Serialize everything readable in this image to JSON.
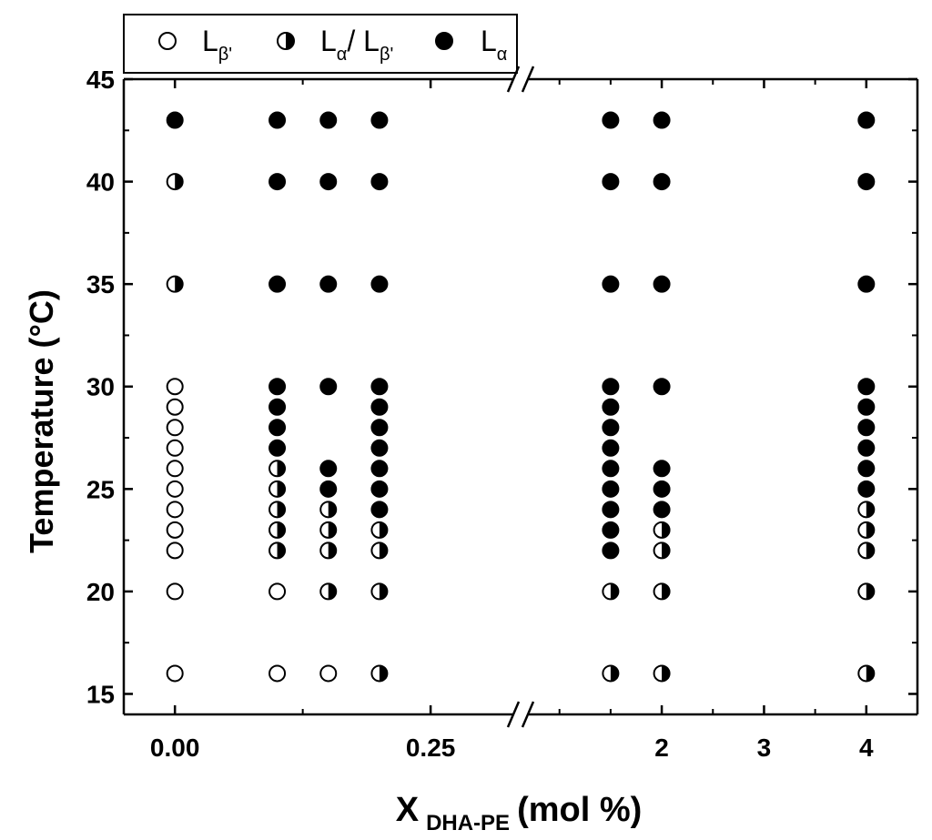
{
  "chart_data": {
    "type": "scatter",
    "title": "",
    "ylabel": "Temperature (°C)",
    "xlabel": {
      "main": "X",
      "subscript": "DHA-PE",
      "suffix": "(mol %)"
    },
    "ylim": [
      14,
      45
    ],
    "yticks": [
      15,
      20,
      25,
      30,
      35,
      40,
      45
    ],
    "x_axis_broken": true,
    "x_segments": [
      {
        "range": [
          -0.05,
          0.33
        ],
        "ticks": [
          0.0,
          0.25
        ],
        "tick_labels": [
          "0.00",
          "0.25"
        ]
      },
      {
        "range": [
          0.7,
          4.5
        ],
        "ticks": [
          2,
          3,
          4
        ],
        "tick_labels": [
          "2",
          "3",
          "4"
        ]
      }
    ],
    "legend": {
      "placement": "top-left, above plot",
      "entries": [
        {
          "phase": "L_beta_prime",
          "marker": "open-circle",
          "label_main": "L",
          "label_sub": "β'"
        },
        {
          "phase": "L_alpha_L_beta_prime",
          "marker": "half-filled-circle",
          "label_main": "L",
          "label_sub": "α",
          "label_sep": "/ ",
          "label_main2": "L",
          "label_sub2": "β'"
        },
        {
          "phase": "L_alpha",
          "marker": "filled-circle",
          "label_main": "L",
          "label_sub": "α"
        }
      ]
    },
    "series": [
      {
        "x": 0.0,
        "points": [
          {
            "T": 16,
            "phase": "open"
          },
          {
            "T": 20,
            "phase": "open"
          },
          {
            "T": 22,
            "phase": "open"
          },
          {
            "T": 23,
            "phase": "open"
          },
          {
            "T": 24,
            "phase": "open"
          },
          {
            "T": 25,
            "phase": "open"
          },
          {
            "T": 26,
            "phase": "open"
          },
          {
            "T": 27,
            "phase": "open"
          },
          {
            "T": 28,
            "phase": "open"
          },
          {
            "T": 29,
            "phase": "open"
          },
          {
            "T": 30,
            "phase": "open"
          },
          {
            "T": 35,
            "phase": "half"
          },
          {
            "T": 40,
            "phase": "half"
          },
          {
            "T": 43,
            "phase": "filled"
          }
        ]
      },
      {
        "x": 0.1,
        "points": [
          {
            "T": 16,
            "phase": "open"
          },
          {
            "T": 20,
            "phase": "open"
          },
          {
            "T": 22,
            "phase": "half"
          },
          {
            "T": 23,
            "phase": "half"
          },
          {
            "T": 24,
            "phase": "half"
          },
          {
            "T": 25,
            "phase": "half"
          },
          {
            "T": 26,
            "phase": "half"
          },
          {
            "T": 27,
            "phase": "filled"
          },
          {
            "T": 28,
            "phase": "filled"
          },
          {
            "T": 29,
            "phase": "filled"
          },
          {
            "T": 30,
            "phase": "filled"
          },
          {
            "T": 35,
            "phase": "filled"
          },
          {
            "T": 40,
            "phase": "filled"
          },
          {
            "T": 43,
            "phase": "filled"
          }
        ]
      },
      {
        "x": 0.15,
        "points": [
          {
            "T": 16,
            "phase": "open"
          },
          {
            "T": 20,
            "phase": "half"
          },
          {
            "T": 22,
            "phase": "half"
          },
          {
            "T": 23,
            "phase": "half"
          },
          {
            "T": 24,
            "phase": "half"
          },
          {
            "T": 25,
            "phase": "filled"
          },
          {
            "T": 26,
            "phase": "filled"
          },
          {
            "T": 30,
            "phase": "filled"
          },
          {
            "T": 35,
            "phase": "filled"
          },
          {
            "T": 40,
            "phase": "filled"
          },
          {
            "T": 43,
            "phase": "filled"
          }
        ]
      },
      {
        "x": 0.2,
        "points": [
          {
            "T": 16,
            "phase": "half"
          },
          {
            "T": 20,
            "phase": "half"
          },
          {
            "T": 22,
            "phase": "half"
          },
          {
            "T": 23,
            "phase": "half"
          },
          {
            "T": 24,
            "phase": "filled"
          },
          {
            "T": 25,
            "phase": "filled"
          },
          {
            "T": 26,
            "phase": "filled"
          },
          {
            "T": 27,
            "phase": "filled"
          },
          {
            "T": 28,
            "phase": "filled"
          },
          {
            "T": 29,
            "phase": "filled"
          },
          {
            "T": 30,
            "phase": "filled"
          },
          {
            "T": 35,
            "phase": "filled"
          },
          {
            "T": 40,
            "phase": "filled"
          },
          {
            "T": 43,
            "phase": "filled"
          }
        ]
      },
      {
        "x": 1.5,
        "points": [
          {
            "T": 16,
            "phase": "half"
          },
          {
            "T": 20,
            "phase": "half"
          },
          {
            "T": 22,
            "phase": "filled"
          },
          {
            "T": 23,
            "phase": "filled"
          },
          {
            "T": 24,
            "phase": "filled"
          },
          {
            "T": 25,
            "phase": "filled"
          },
          {
            "T": 26,
            "phase": "filled"
          },
          {
            "T": 27,
            "phase": "filled"
          },
          {
            "T": 28,
            "phase": "filled"
          },
          {
            "T": 29,
            "phase": "filled"
          },
          {
            "T": 30,
            "phase": "filled"
          },
          {
            "T": 35,
            "phase": "filled"
          },
          {
            "T": 40,
            "phase": "filled"
          },
          {
            "T": 43,
            "phase": "filled"
          }
        ]
      },
      {
        "x": 2.0,
        "points": [
          {
            "T": 16,
            "phase": "half"
          },
          {
            "T": 20,
            "phase": "half"
          },
          {
            "T": 22,
            "phase": "half"
          },
          {
            "T": 23,
            "phase": "half"
          },
          {
            "T": 24,
            "phase": "filled"
          },
          {
            "T": 25,
            "phase": "filled"
          },
          {
            "T": 26,
            "phase": "filled"
          },
          {
            "T": 30,
            "phase": "filled"
          },
          {
            "T": 35,
            "phase": "filled"
          },
          {
            "T": 40,
            "phase": "filled"
          },
          {
            "T": 43,
            "phase": "filled"
          }
        ]
      },
      {
        "x": 4.0,
        "points": [
          {
            "T": 16,
            "phase": "half"
          },
          {
            "T": 20,
            "phase": "half"
          },
          {
            "T": 22,
            "phase": "half"
          },
          {
            "T": 23,
            "phase": "half"
          },
          {
            "T": 24,
            "phase": "half"
          },
          {
            "T": 25,
            "phase": "filled"
          },
          {
            "T": 26,
            "phase": "filled"
          },
          {
            "T": 27,
            "phase": "filled"
          },
          {
            "T": 28,
            "phase": "filled"
          },
          {
            "T": 29,
            "phase": "filled"
          },
          {
            "T": 30,
            "phase": "filled"
          },
          {
            "T": 35,
            "phase": "filled"
          },
          {
            "T": 40,
            "phase": "filled"
          },
          {
            "T": 43,
            "phase": "filled"
          }
        ]
      }
    ]
  }
}
